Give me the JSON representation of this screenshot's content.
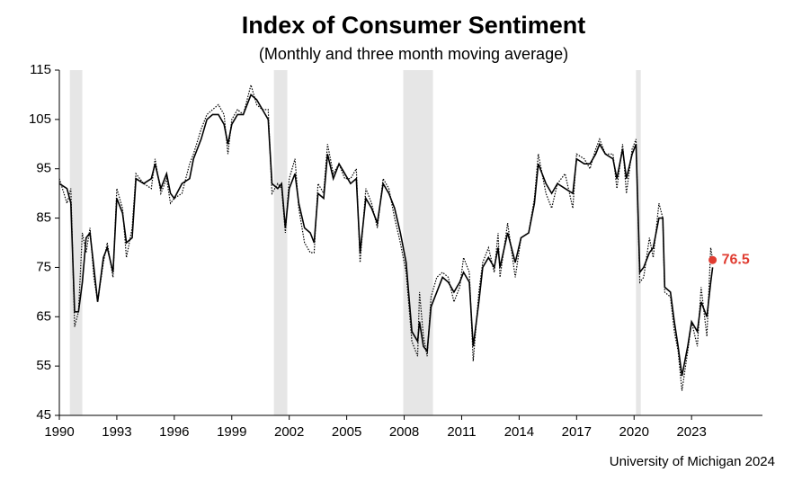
{
  "chart_data": {
    "type": "line",
    "title": "Index of Consumer Sentiment",
    "subtitle": "(Monthly and three month moving average)",
    "source": "University of Michigan 2024",
    "x": [
      1990.0,
      1990.4,
      1990.6,
      1990.8,
      1991.0,
      1991.2,
      1991.4,
      1991.6,
      1991.8,
      1992.0,
      1992.3,
      1992.5,
      1992.8,
      1993.0,
      1993.3,
      1993.5,
      1993.8,
      1994.0,
      1994.4,
      1994.8,
      1995.0,
      1995.3,
      1995.6,
      1995.8,
      1996.0,
      1996.4,
      1996.8,
      1997.0,
      1997.4,
      1997.7,
      1998.0,
      1998.3,
      1998.6,
      1998.8,
      1999.0,
      1999.3,
      1999.6,
      2000.0,
      2000.3,
      2000.6,
      2000.9,
      2001.1,
      2001.4,
      2001.6,
      2001.8,
      2002.0,
      2002.3,
      2002.5,
      2002.8,
      2003.1,
      2003.3,
      2003.5,
      2003.8,
      2004.0,
      2004.3,
      2004.6,
      2004.9,
      2005.2,
      2005.5,
      2005.7,
      2006.0,
      2006.3,
      2006.6,
      2006.9,
      2007.2,
      2007.5,
      2007.8,
      2008.1,
      2008.4,
      2008.7,
      2008.8,
      2009.0,
      2009.2,
      2009.4,
      2009.7,
      2010.0,
      2010.3,
      2010.6,
      2010.9,
      2011.1,
      2011.4,
      2011.6,
      2011.9,
      2012.1,
      2012.4,
      2012.7,
      2012.9,
      2013.0,
      2013.4,
      2013.8,
      2014.1,
      2014.5,
      2014.8,
      2015.0,
      2015.4,
      2015.7,
      2016.0,
      2016.4,
      2016.8,
      2017.0,
      2017.4,
      2017.7,
      2018.0,
      2018.2,
      2018.5,
      2018.9,
      2019.1,
      2019.4,
      2019.6,
      2019.9,
      2020.1,
      2020.3,
      2020.5,
      2020.8,
      2021.0,
      2021.3,
      2021.5,
      2021.6,
      2021.9,
      2022.1,
      2022.3,
      2022.5,
      2022.8,
      2023.0,
      2023.3,
      2023.5,
      2023.8,
      2024.0,
      2024.1
    ],
    "series": [
      {
        "style": "solid",
        "color": "#000000",
        "values": [
          92,
          91,
          88,
          66,
          66,
          72,
          81,
          82,
          75,
          68,
          77,
          79,
          74,
          89,
          86,
          80,
          81,
          93,
          92,
          93,
          96,
          91,
          94,
          90,
          89,
          92,
          93,
          97,
          101,
          105,
          106,
          106,
          104,
          100,
          104,
          106,
          106,
          110,
          109,
          107,
          105,
          92,
          91,
          92,
          83,
          91,
          94,
          88,
          83,
          82,
          80,
          90,
          89,
          98,
          93,
          96,
          94,
          92,
          93,
          78,
          89,
          87,
          84,
          92,
          90,
          87,
          82,
          76,
          62,
          60,
          64,
          59,
          58,
          67,
          70,
          73,
          72,
          70,
          72,
          74,
          72,
          59,
          68,
          75,
          77,
          75,
          79,
          75,
          82,
          76,
          81,
          82,
          88,
          96,
          92,
          90,
          92,
          91,
          90,
          97,
          96,
          96,
          98,
          100,
          98,
          97,
          93,
          99,
          93,
          98,
          100,
          74,
          75,
          78,
          79,
          85,
          85,
          71,
          70,
          64,
          59,
          53,
          59,
          64,
          62,
          68,
          65,
          72,
          75
        ]
      },
      {
        "style": "dotted",
        "color": "#000000",
        "values": [
          93,
          88,
          91,
          63,
          66,
          82,
          78,
          83,
          73,
          68,
          76,
          80,
          73,
          91,
          87,
          77,
          83,
          94,
          92,
          91,
          97,
          90,
          93,
          88,
          89,
          90,
          96,
          98,
          103,
          106,
          107,
          108,
          106,
          98,
          105,
          107,
          106,
          112,
          108,
          107,
          107,
          90,
          92,
          91,
          82,
          93,
          97,
          87,
          80,
          78,
          78,
          92,
          90,
          100,
          94,
          96,
          93,
          93,
          95,
          76,
          91,
          88,
          83,
          93,
          91,
          85,
          80,
          74,
          60,
          57,
          70,
          61,
          57,
          69,
          73,
          74,
          73,
          68,
          71,
          77,
          74,
          56,
          70,
          76,
          79,
          74,
          82,
          73,
          84,
          73,
          81,
          82,
          89,
          98,
          90,
          87,
          92,
          94,
          87,
          98,
          97,
          95,
          99,
          101,
          98,
          98,
          91,
          100,
          90,
          99,
          101,
          72,
          73,
          81,
          77,
          88,
          85,
          70,
          69,
          62,
          58,
          50,
          58,
          64,
          59,
          71,
          61,
          79,
          76.5
        ]
      }
    ],
    "annotation": {
      "x": 2024.1,
      "value": 76.5,
      "color": "#e03c31"
    },
    "shaded_periods": [
      [
        1990.55,
        1991.2
      ],
      [
        2001.2,
        2001.9
      ],
      [
        2007.95,
        2009.5
      ],
      [
        2020.1,
        2020.35
      ]
    ],
    "shade_color": "#e6e6e6",
    "xlim": [
      1990,
      2026.7
    ],
    "xticks": [
      1990,
      1993,
      1996,
      1999,
      2002,
      2005,
      2008,
      2011,
      2014,
      2017,
      2020,
      2023
    ],
    "ylim": [
      45,
      115
    ],
    "yticks": [
      45,
      55,
      65,
      75,
      85,
      95,
      105,
      115
    ]
  }
}
